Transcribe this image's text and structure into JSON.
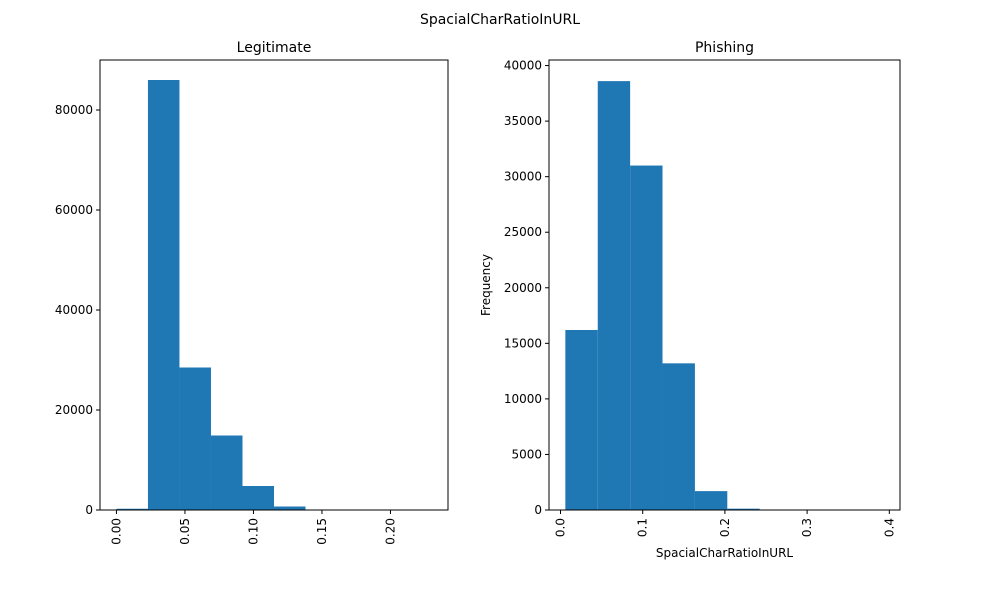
{
  "figure": {
    "suptitle": "SpacialCharRatioInURL"
  },
  "chart_data": [
    {
      "type": "bar",
      "title": "Legitimate",
      "xlabel": "",
      "ylabel": "",
      "xlim": [
        -0.012,
        0.242
      ],
      "ylim": [
        0,
        90000
      ],
      "xticks": [
        0.0,
        0.05,
        0.1,
        0.15,
        0.2
      ],
      "xtick_labels": [
        "0.00",
        "0.05",
        "0.10",
        "0.15",
        "0.20"
      ],
      "yticks": [
        0,
        20000,
        40000,
        60000,
        80000
      ],
      "ytick_labels": [
        "0",
        "20000",
        "40000",
        "60000",
        "80000"
      ],
      "bin_edges": [
        0.0,
        0.023,
        0.046,
        0.069,
        0.092,
        0.115,
        0.138,
        0.161,
        0.184,
        0.207,
        0.23
      ],
      "values": [
        250,
        86000,
        28500,
        14900,
        4800,
        700,
        80,
        20,
        10,
        5
      ],
      "color": "#1f77b4",
      "grid": false,
      "xtick_rotation": 90
    },
    {
      "type": "bar",
      "title": "Phishing",
      "xlabel": "SpacialCharRatioInURL",
      "ylabel": "Frequency",
      "xlim": [
        -0.014,
        0.413
      ],
      "ylim": [
        0,
        40500
      ],
      "xticks": [
        0.0,
        0.1,
        0.2,
        0.3,
        0.4
      ],
      "xtick_labels": [
        "0.0",
        "0.1",
        "0.2",
        "0.3",
        "0.4"
      ],
      "yticks": [
        0,
        5000,
        10000,
        15000,
        20000,
        25000,
        30000,
        35000,
        40000
      ],
      "ytick_labels": [
        "0",
        "5000",
        "10000",
        "15000",
        "20000",
        "25000",
        "30000",
        "35000",
        "40000"
      ],
      "bin_edges": [
        0.0059,
        0.0453,
        0.0847,
        0.1241,
        0.1635,
        0.2029,
        0.2423,
        0.2817,
        0.3211,
        0.3605,
        0.3999
      ],
      "values": [
        16200,
        38600,
        31000,
        13200,
        1700,
        120,
        30,
        10,
        5,
        3
      ],
      "color": "#1f77b4",
      "grid": false,
      "xtick_rotation": [
        90,
        0
      ]
    }
  ]
}
